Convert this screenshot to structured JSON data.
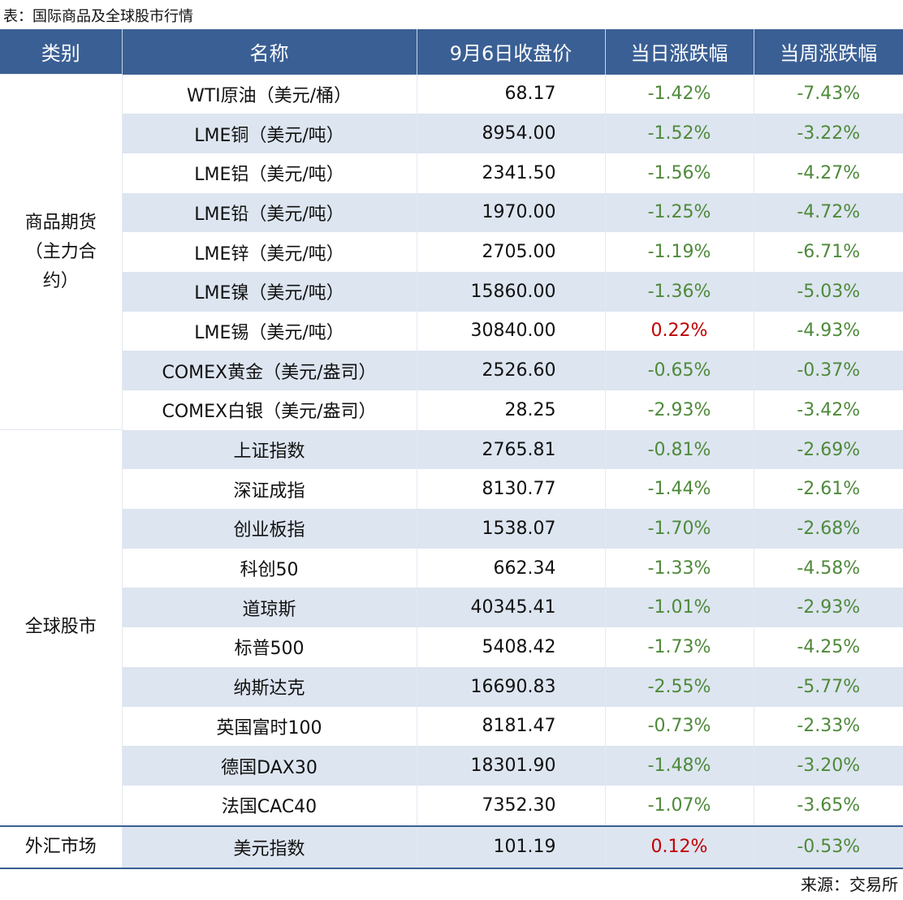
{
  "title": "表：国际商品及全球股市行情",
  "source": "来源：交易所",
  "table": {
    "header": [
      "类别",
      "名称",
      "9月6日收盘价",
      "当日涨跌幅",
      "当周涨跌幅"
    ],
    "groups": [
      {
        "category": "商品期货（主力合约）",
        "rows": [
          [
            "WTI原油（美元/桶）",
            "68.17",
            "-1.42%",
            "-7.43%"
          ],
          [
            "LME铜（美元/吨）",
            "8954.00",
            "-1.52%",
            "-3.22%"
          ],
          [
            "LME铝（美元/吨）",
            "2341.50",
            "-1.56%",
            "-4.27%"
          ],
          [
            "LME铅（美元/吨）",
            "1970.00",
            "-1.25%",
            "-4.72%"
          ],
          [
            "LME锌（美元/吨）",
            "2705.00",
            "-1.19%",
            "-6.71%"
          ],
          [
            "LME镍（美元/吨）",
            "15860.00",
            "-1.36%",
            "-5.03%"
          ],
          [
            "LME锡（美元/吨）",
            "30840.00",
            "0.22%",
            "-4.93%"
          ],
          [
            "COMEX黄金（美元/盎司）",
            "2526.60",
            "-0.65%",
            "-0.37%"
          ],
          [
            "COMEX白银（美元/盎司）",
            "28.25",
            "-2.93%",
            "-3.42%"
          ]
        ]
      },
      {
        "category": "全球股市",
        "rows": [
          [
            "上证指数",
            "2765.81",
            "-0.81%",
            "-2.69%"
          ],
          [
            "深证成指",
            "8130.77",
            "-1.44%",
            "-2.61%"
          ],
          [
            "创业板指",
            "1538.07",
            "-1.70%",
            "-2.68%"
          ],
          [
            "科创50",
            "662.34",
            "-1.33%",
            "-4.58%"
          ],
          [
            "道琼斯",
            "40345.41",
            "-1.01%",
            "-2.93%"
          ],
          [
            "标普500",
            "5408.42",
            "-1.73%",
            "-4.25%"
          ],
          [
            "纳斯达克",
            "16690.83",
            "-2.55%",
            "-5.77%"
          ],
          [
            "英国富时100",
            "8181.47",
            "-0.73%",
            "-2.33%"
          ],
          [
            "德国DAX30",
            "18301.90",
            "-1.48%",
            "-3.20%"
          ],
          [
            "法国CAC40",
            "7352.30",
            "-1.07%",
            "-3.65%"
          ]
        ]
      },
      {
        "category": "外汇市场",
        "rows": [
          [
            "美元指数",
            "101.19",
            "0.12%",
            "-0.53%"
          ]
        ]
      }
    ]
  }
}
